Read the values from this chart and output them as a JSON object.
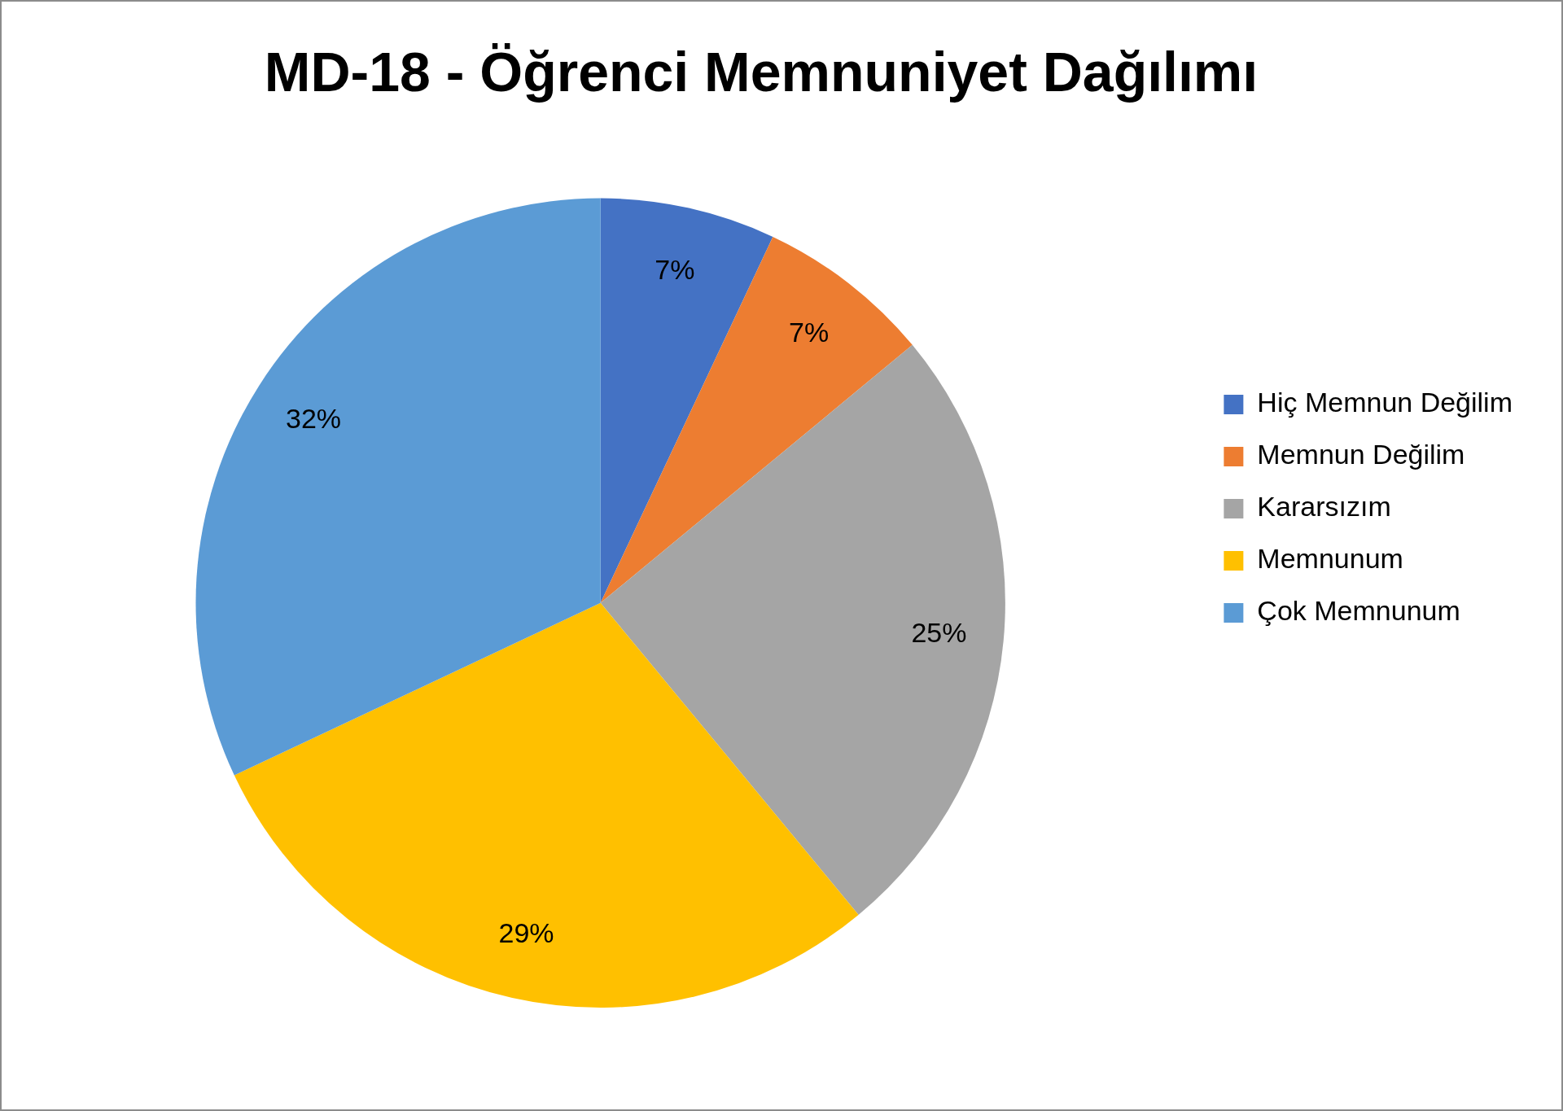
{
  "chart_data": {
    "type": "pie",
    "title": "MD-18 - Öğrenci Memnuniyet Dağılımı",
    "categories": [
      "Hiç Memnun Değilim",
      "Memnun Değilim",
      "Kararsızım",
      "Memnunum",
      "Çok Memnunum"
    ],
    "values": [
      7,
      7,
      25,
      29,
      32
    ],
    "colors": [
      "#4472c4",
      "#ed7d31",
      "#a5a5a5",
      "#ffc000",
      "#5b9bd5"
    ],
    "value_labels": [
      "7%",
      "7%",
      "25%",
      "29%",
      "32%"
    ],
    "legend": "right"
  }
}
